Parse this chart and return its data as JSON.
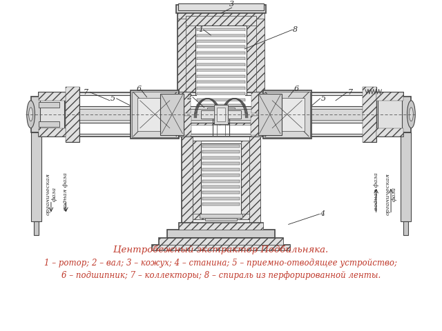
{
  "title_line1": "Центробежный экстрактор Подбильняка.",
  "title_line2": "1 – ротор; 2 – вал; 3 – кожух; 4 – станина; 5 – приемно-отводящее устройство;",
  "title_line3": "6 – подшипник; 7 – коллекторы; 8 – спираль из перфорированной ленты.",
  "text_color": "#c0392b",
  "bg_color": "#ffffff",
  "fig_width": 6.4,
  "fig_height": 4.8,
  "dpi": 100,
  "caption_fontsize": 9.0,
  "label_color": "#2c2c2c"
}
